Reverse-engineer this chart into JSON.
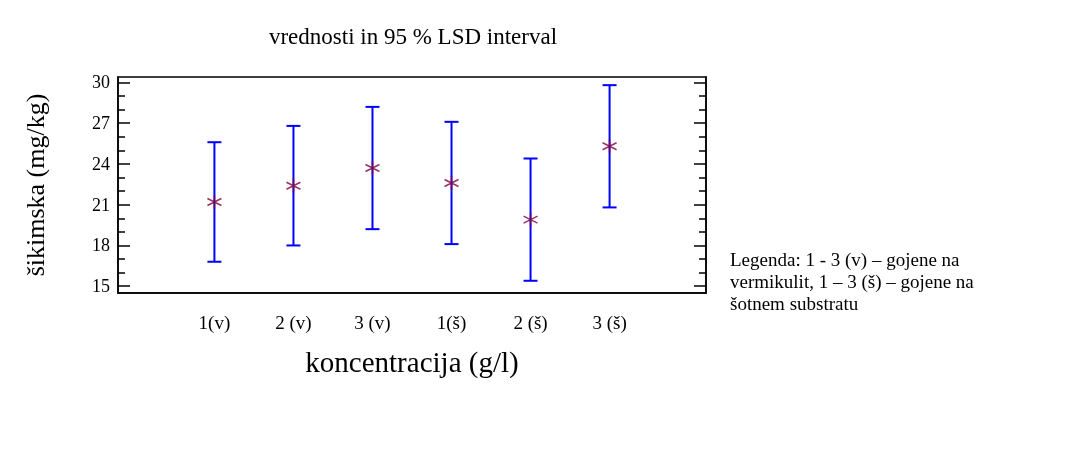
{
  "chart_data": {
    "type": "scatter",
    "title": "vrednosti in 95 % LSD interval",
    "xlabel": "koncentracija (g/l)",
    "ylabel": "šikimska (mg/kg)",
    "categories": [
      "1(v)",
      "2 (v)",
      "3 (v)",
      "1(š)",
      "2 (š)",
      "3 (š)"
    ],
    "series": [
      {
        "color": "#800040",
        "values": [
          21.2,
          22.4,
          23.7,
          22.6,
          19.9,
          25.3
        ],
        "errors": [
          4.4,
          4.4,
          4.5,
          4.5,
          4.5,
          4.5
        ]
      }
    ],
    "ylim": [
      14.5,
      30.4
    ],
    "yticks": [
      15,
      18,
      21,
      24,
      27,
      30
    ],
    "marker": "star",
    "grid": false,
    "annotations": [
      "Legenda: 1 - 3 (v) – gojene na vermikulit, 1 – 3 (š) – gojene na šotnem substratu"
    ]
  }
}
